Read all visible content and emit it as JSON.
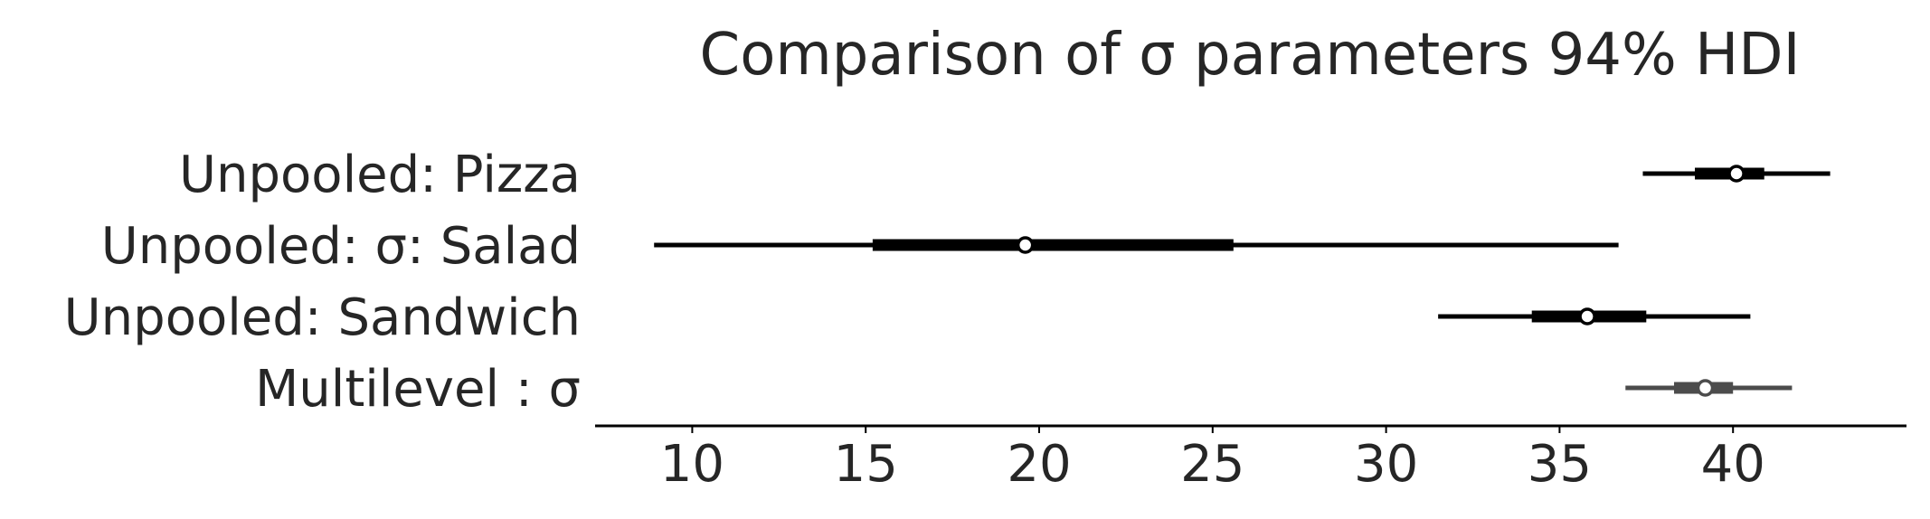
{
  "chart_data": {
    "type": "forest",
    "title": "Comparison of σ parameters 94% HDI",
    "xlabel": "",
    "ylabel": "",
    "xlim": [
      7.2,
      45.0
    ],
    "x_ticks": [
      10,
      15,
      20,
      25,
      30,
      35,
      40
    ],
    "x_tick_labels": [
      "10",
      "15",
      "20",
      "25",
      "30",
      "35",
      "40"
    ],
    "grid": false,
    "legend": "none",
    "rows": [
      {
        "label": "Unpooled:  Pizza",
        "hdi_low": 37.4,
        "hdi_high": 42.8,
        "iqr_low": 38.9,
        "iqr_high": 40.9,
        "point": 40.1,
        "color": "#000000"
      },
      {
        "label": "Unpooled: σ: Salad",
        "hdi_low": 8.9,
        "hdi_high": 36.7,
        "iqr_low": 15.2,
        "iqr_high": 25.6,
        "point": 19.6,
        "color": "#000000"
      },
      {
        "label": "Unpooled:  Sandwich",
        "hdi_low": 31.5,
        "hdi_high": 40.5,
        "iqr_low": 34.2,
        "iqr_high": 37.5,
        "point": 35.8,
        "color": "#000000"
      },
      {
        "label": "Multilevel : σ",
        "hdi_low": 36.9,
        "hdi_high": 41.7,
        "iqr_low": 38.3,
        "iqr_high": 40.0,
        "point": 39.2,
        "color": "#4c4c4c"
      }
    ]
  }
}
